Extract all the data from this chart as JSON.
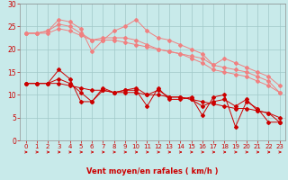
{
  "x": [
    0,
    1,
    2,
    3,
    4,
    5,
    6,
    7,
    8,
    9,
    10,
    11,
    12,
    13,
    14,
    15,
    16,
    17,
    18,
    19,
    20,
    21,
    22,
    23
  ],
  "lines_light": [
    [
      23.5,
      23.5,
      24.0,
      26.5,
      26.0,
      24.5,
      19.5,
      22.0,
      24.0,
      25.0,
      26.5,
      24.0,
      22.5,
      22.0,
      21.0,
      20.0,
      19.0,
      16.5,
      18.0,
      17.0,
      16.0,
      15.0,
      14.0,
      12.0
    ],
    [
      23.5,
      23.5,
      24.0,
      25.5,
      25.0,
      23.5,
      22.0,
      22.5,
      22.5,
      22.5,
      22.0,
      21.0,
      20.0,
      19.5,
      19.0,
      18.5,
      18.0,
      16.5,
      16.0,
      15.5,
      15.0,
      14.0,
      13.0,
      10.5
    ],
    [
      23.5,
      23.5,
      23.5,
      24.5,
      24.0,
      23.0,
      22.0,
      22.0,
      22.0,
      21.5,
      21.0,
      20.5,
      20.0,
      19.5,
      19.0,
      18.0,
      17.0,
      15.5,
      15.0,
      14.5,
      14.0,
      13.0,
      12.0,
      10.5
    ]
  ],
  "lines_dark": [
    [
      12.5,
      12.5,
      12.5,
      15.5,
      13.5,
      8.5,
      8.5,
      11.5,
      10.5,
      11.0,
      11.0,
      7.5,
      11.5,
      9.0,
      9.0,
      9.5,
      5.5,
      9.5,
      10.0,
      3.0,
      8.5,
      7.0,
      4.0,
      4.0
    ],
    [
      12.5,
      12.5,
      12.5,
      13.5,
      12.5,
      10.5,
      8.5,
      11.0,
      10.5,
      11.0,
      11.5,
      10.0,
      11.0,
      9.5,
      9.5,
      9.0,
      7.5,
      8.5,
      9.0,
      7.5,
      9.0,
      6.5,
      6.0,
      4.0
    ],
    [
      12.5,
      12.5,
      12.5,
      12.5,
      12.0,
      11.5,
      11.0,
      11.0,
      10.5,
      10.5,
      10.5,
      10.0,
      10.0,
      9.5,
      9.5,
      9.0,
      8.5,
      8.0,
      7.5,
      7.0,
      7.0,
      6.5,
      6.0,
      5.0
    ]
  ],
  "light_color": "#f08080",
  "dark_color": "#cc0000",
  "background_color": "#c8eaea",
  "grid_color": "#a0c8c8",
  "xlabel": "Vent moyen/en rafales ( km/h )",
  "ylim": [
    0,
    30
  ],
  "yticks": [
    0,
    5,
    10,
    15,
    20,
    25,
    30
  ],
  "xticks": [
    0,
    1,
    2,
    3,
    4,
    5,
    6,
    7,
    8,
    9,
    10,
    11,
    12,
    13,
    14,
    15,
    16,
    17,
    18,
    19,
    20,
    21,
    22,
    23
  ],
  "tick_color": "#cc0000",
  "label_color": "#cc0000"
}
